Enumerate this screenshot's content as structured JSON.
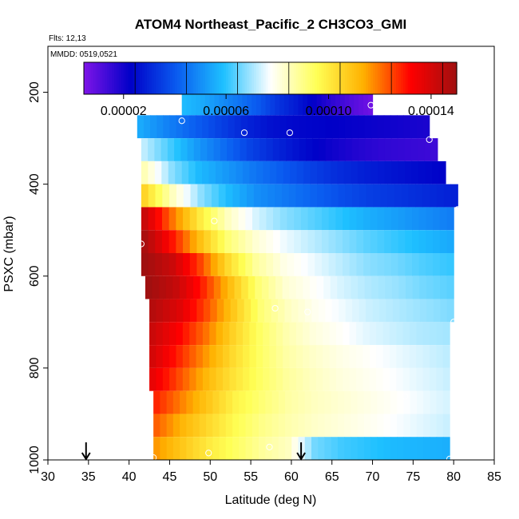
{
  "chart_data": {
    "type": "heatmap",
    "title": "ATOM4 Northeast_Pacific_2 CH3CO3_GMI",
    "flights_label": "Flts: 12,13",
    "dates_label": "MMDD: 0519,0521",
    "xlabel": "Latitude (deg N)",
    "ylabel": "PSXC (mbar)",
    "xlim": [
      30,
      85
    ],
    "ylim": [
      1000,
      100
    ],
    "x_ticks": [
      30,
      35,
      40,
      45,
      50,
      55,
      60,
      65,
      70,
      75,
      80,
      85
    ],
    "y_ticks": [
      200,
      400,
      600,
      800,
      1000
    ],
    "colorbar": {
      "range": [
        4.5e-06,
        0.00015
      ],
      "tick_values": [
        2e-05,
        6e-05,
        0.0001,
        0.00014
      ],
      "tick_labels": [
        "0.00002",
        "0.00006",
        "0.00010",
        "0.00014"
      ],
      "divisions": [
        4.5e-06,
        2.45e-05,
        4.45e-05,
        6.45e-05,
        8.45e-05,
        0.0001045,
        0.0001245,
        0.0001445
      ],
      "colors": [
        "#7f14e8",
        "#0000c8",
        "#0a5cf0",
        "#1ec0ff",
        "#ffffff",
        "#ffff55",
        "#ffb000",
        "#ff0000",
        "#a01010"
      ]
    },
    "layers": [
      {
        "p_top": 200,
        "p_bot": 250,
        "lat_min": 46.5,
        "lat_max": 70,
        "values": [
          5.8e-05,
          5.5e-05,
          5e-05,
          4.5e-05,
          4e-05,
          3.3e-05,
          2.8e-05,
          2.2e-05,
          1.6e-05,
          1.1e-05,
          7e-06
        ]
      },
      {
        "p_top": 250,
        "p_bot": 300,
        "lat_min": 41,
        "lat_max": 77,
        "values": [
          5.5e-05,
          4.8e-05,
          4.2e-05,
          3.6e-05,
          3e-05,
          2.6e-05,
          2.4e-05,
          2.3e-05,
          2.2e-05,
          2.1e-05,
          2e-05,
          1.9e-05
        ]
      },
      {
        "p_top": 300,
        "p_bot": 350,
        "lat_min": 41.5,
        "lat_max": 78,
        "values": [
          7.2e-05,
          6.2e-05,
          5.2e-05,
          4.4e-05,
          3.6e-05,
          3e-05,
          2.5e-05,
          2.1e-05,
          1.8e-05,
          1.6e-05,
          1.5e-05,
          1.4e-05
        ]
      },
      {
        "p_top": 350,
        "p_bot": 400,
        "lat_min": 41.5,
        "lat_max": 79,
        "values": [
          8.5e-05,
          6.8e-05,
          5.8e-05,
          5.2e-05,
          4.6e-05,
          4.1e-05,
          3.6e-05,
          3.2e-05,
          2.9e-05,
          2.7e-05,
          2.5e-05,
          2.3e-05
        ]
      },
      {
        "p_top": 400,
        "p_bot": 450,
        "lat_min": 41.5,
        "lat_max": 80.5,
        "values": [
          0.000105,
          8.4e-05,
          6.8e-05,
          5.8e-05,
          5e-05,
          4.6e-05,
          4.2e-05,
          3.8e-05,
          3.5e-05,
          3.3e-05,
          3.1e-05,
          2.9e-05
        ]
      },
      {
        "p_top": 450,
        "p_bot": 500,
        "lat_min": 41.5,
        "lat_max": 80,
        "values": [
          0.000142,
          0.00012,
          0.0001,
          8.4e-05,
          7.4e-05,
          6.8e-05,
          6.4e-05,
          6e-05,
          5.6e-05,
          5.3e-05,
          5e-05,
          4.7e-05
        ]
      },
      {
        "p_top": 500,
        "p_bot": 550,
        "lat_min": 41.5,
        "lat_max": 80,
        "values": [
          0.000148,
          0.00013,
          0.00011,
          9.2e-05,
          8.2e-05,
          7.6e-05,
          7.2e-05,
          6.8e-05,
          6.4e-05,
          6.1e-05,
          5.8e-05,
          5.5e-05
        ]
      },
      {
        "p_top": 550,
        "p_bot": 600,
        "lat_min": 41.5,
        "lat_max": 80,
        "values": [
          0.00015,
          0.000142,
          0.000125,
          0.000104,
          8.8e-05,
          8e-05,
          7.6e-05,
          7.2e-05,
          6.8e-05,
          6.6e-05,
          6.3e-05,
          6.1e-05
        ]
      },
      {
        "p_top": 600,
        "p_bot": 650,
        "lat_min": 42,
        "lat_max": 80,
        "values": [
          0.00015,
          0.000143,
          0.000128,
          0.00011,
          9.2e-05,
          8.2e-05,
          7.8e-05,
          7.4e-05,
          7.1e-05,
          6.9e-05,
          6.6e-05,
          6.4e-05
        ]
      },
      {
        "p_top": 650,
        "p_bot": 700,
        "lat_min": 42.5,
        "lat_max": 80,
        "values": [
          0.000146,
          0.000138,
          0.000124,
          0.000108,
          9.2e-05,
          8.4e-05,
          7.9e-05,
          7.6e-05,
          7.3e-05,
          7.1e-05,
          6.9e-05,
          6.7e-05
        ]
      },
      {
        "p_top": 700,
        "p_bot": 750,
        "lat_min": 42.5,
        "lat_max": 79.5,
        "values": [
          0.000142,
          0.000132,
          0.00012,
          0.000106,
          9.4e-05,
          8.6e-05,
          8.1e-05,
          7.8e-05,
          7.5e-05,
          7.3e-05,
          7.1e-05,
          7e-05
        ]
      },
      {
        "p_top": 750,
        "p_bot": 800,
        "lat_min": 42.5,
        "lat_max": 79.5,
        "values": [
          0.00014,
          0.000128,
          0.000116,
          0.000104,
          9.4e-05,
          8.7e-05,
          8.3e-05,
          8e-05,
          7.8e-05,
          7.6e-05,
          7.4e-05,
          7.2e-05
        ]
      },
      {
        "p_top": 800,
        "p_bot": 850,
        "lat_min": 42.5,
        "lat_max": 79.5,
        "values": [
          0.000136,
          0.000124,
          0.000112,
          0.000102,
          9.4e-05,
          8.8e-05,
          8.4e-05,
          8.1e-05,
          7.9e-05,
          7.7e-05,
          7.5e-05,
          7.3e-05
        ]
      },
      {
        "p_top": 850,
        "p_bot": 900,
        "lat_min": 43,
        "lat_max": 79.5,
        "values": [
          0.000128,
          0.000118,
          0.000108,
          9.8e-05,
          9.2e-05,
          8.7e-05,
          8.4e-05,
          8.2e-05,
          8e-05,
          7.8e-05,
          7.6e-05,
          7.4e-05
        ]
      },
      {
        "p_top": 900,
        "p_bot": 950,
        "lat_min": 43,
        "lat_max": 79.5,
        "values": [
          0.000122,
          0.000112,
          0.000104,
          9.6e-05,
          9e-05,
          8.6e-05,
          8.3e-05,
          8.1e-05,
          7.9e-05,
          7.7e-05,
          7.5e-05,
          7.3e-05
        ]
      },
      {
        "p_top": 950,
        "p_bot": 1000,
        "lat_min": 43,
        "lat_max": 79.5,
        "values": [
          0.000116,
          0.000108,
          0.0001,
          9.4e-05,
          8.8e-05,
          8.4e-05,
          6.6e-05,
          6.2e-05,
          6e-05,
          5.8e-05,
          5.7e-05,
          5.6e-05
        ]
      }
    ],
    "flight_points": [
      {
        "lat": 69.8,
        "p": 228
      },
      {
        "lat": 46.5,
        "p": 262
      },
      {
        "lat": 54.2,
        "p": 288
      },
      {
        "lat": 59.8,
        "p": 288
      },
      {
        "lat": 40.5,
        "p": 265
      },
      {
        "lat": 77.0,
        "p": 303
      },
      {
        "lat": 80.5,
        "p": 455
      },
      {
        "lat": 50.5,
        "p": 480
      },
      {
        "lat": 41.5,
        "p": 530
      },
      {
        "lat": 58.0,
        "p": 670
      },
      {
        "lat": 62.0,
        "p": 678
      },
      {
        "lat": 80.0,
        "p": 700
      },
      {
        "lat": 74.0,
        "p": 862
      },
      {
        "lat": 57.3,
        "p": 972
      },
      {
        "lat": 49.8,
        "p": 985
      },
      {
        "lat": 43.0,
        "p": 995
      },
      {
        "lat": 79.5,
        "p": 998
      }
    ],
    "markers": [
      {
        "lat": 34.7,
        "label": "down-arrow"
      },
      {
        "lat": 61.2,
        "label": "down-arrow"
      }
    ]
  }
}
